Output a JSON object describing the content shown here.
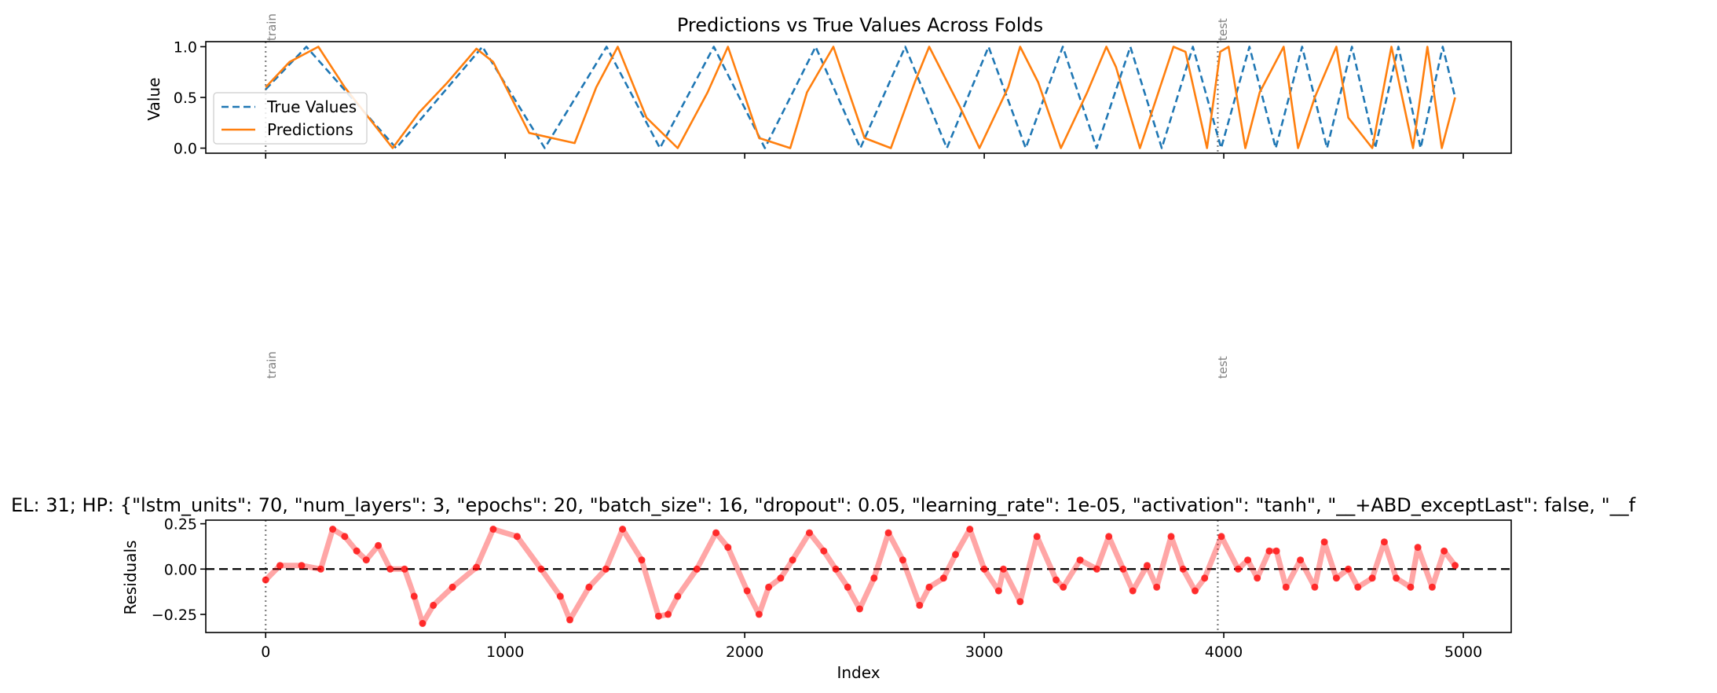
{
  "chart_data": [
    {
      "type": "line",
      "title": "Predictions vs True Values Across Folds",
      "xlabel": "",
      "ylabel": "Value",
      "xlim": [
        -250,
        5200
      ],
      "ylim": [
        -0.05,
        1.05
      ],
      "yticks": [
        0.0,
        0.5,
        1.0
      ],
      "ytick_labels": [
        "0.0",
        "0.5",
        "1.0"
      ],
      "xticks": [
        0,
        1000,
        2000,
        3000,
        4000,
        5000
      ],
      "grid": false,
      "legend_placement": "center-left",
      "fold_markers": [
        {
          "x": 0,
          "label": "train"
        },
        {
          "x": 3975,
          "label": "test"
        }
      ],
      "series": [
        {
          "name": "True Values",
          "style": "dashed",
          "color": "#1f77b4",
          "x": [
            0,
            170,
            545,
            905,
            1165,
            1423,
            1646,
            1871,
            2084,
            2296,
            2483,
            2670,
            2844,
            3018,
            3173,
            3328,
            3469,
            3610,
            3741,
            3871,
            3989,
            4107,
            4217,
            4327,
            4431,
            4535,
            4632,
            4729,
            4822,
            4914,
            4966
          ],
          "y": [
            0.58,
            1.0,
            0.0,
            1.0,
            0.0,
            1.0,
            0.0,
            1.0,
            0.0,
            1.0,
            0.0,
            1.0,
            0.0,
            1.0,
            0.0,
            1.0,
            0.0,
            1.0,
            0.0,
            1.0,
            0.0,
            1.0,
            0.0,
            1.0,
            0.0,
            1.0,
            0.0,
            1.0,
            0.0,
            1.0,
            0.5
          ]
        },
        {
          "name": "Predictions",
          "style": "solid",
          "color": "#ff7f0e",
          "x": [
            0,
            100,
            220,
            330,
            530,
            640,
            760,
            880,
            950,
            1100,
            1290,
            1380,
            1470,
            1590,
            1720,
            1845,
            1930,
            2060,
            2190,
            2260,
            2370,
            2500,
            2610,
            2710,
            2770,
            2900,
            2980,
            3100,
            3150,
            3225,
            3320,
            3430,
            3510,
            3550,
            3650,
            3790,
            3840,
            3930,
            3985,
            4020,
            4090,
            4150,
            4250,
            4310,
            4380,
            4470,
            4520,
            4620,
            4700,
            4790,
            4850,
            4910,
            4966
          ],
          "y": [
            0.6,
            0.85,
            1.0,
            0.6,
            0.0,
            0.35,
            0.65,
            0.98,
            0.85,
            0.15,
            0.05,
            0.6,
            1.0,
            0.3,
            0.0,
            0.55,
            1.0,
            0.1,
            0.0,
            0.55,
            1.0,
            0.1,
            0.0,
            0.65,
            1.0,
            0.4,
            0.0,
            0.6,
            1.0,
            0.65,
            0.0,
            0.55,
            1.0,
            0.8,
            0.0,
            1.0,
            0.95,
            0.0,
            0.95,
            1.0,
            0.0,
            0.55,
            1.0,
            0.0,
            0.5,
            1.0,
            0.3,
            0.0,
            1.0,
            0.0,
            1.0,
            0.0,
            0.5
          ]
        }
      ]
    },
    {
      "type": "scatter",
      "title": "EL: 31; HP: {\"lstm_units\": 70, \"num_layers\": 3, \"epochs\": 20, \"batch_size\": 16, \"dropout\": 0.05, \"learning_rate\": 1e-05, \"activation\": \"tanh\", \"__+ABD_exceptLast\": false, \"__f",
      "xlabel": "Index",
      "ylabel": "Residuals",
      "xlim": [
        -250,
        5200
      ],
      "ylim": [
        -0.35,
        0.27
      ],
      "yticks": [
        -0.25,
        0.0,
        0.25
      ],
      "ytick_labels": [
        "−0.25",
        "0.00",
        "0.25"
      ],
      "xticks": [
        0,
        1000,
        2000,
        3000,
        4000,
        5000
      ],
      "xtick_labels": [
        "0",
        "1000",
        "2000",
        "3000",
        "4000",
        "5000"
      ],
      "grid": false,
      "zero_line": 0,
      "fold_markers": [
        {
          "x": 0,
          "label": "train"
        },
        {
          "x": 3975,
          "label": "test"
        }
      ],
      "series": [
        {
          "color": "#ff0000",
          "x": [
            0,
            60,
            150,
            230,
            280,
            330,
            380,
            420,
            470,
            520,
            580,
            620,
            655,
            700,
            780,
            880,
            950,
            1050,
            1150,
            1230,
            1270,
            1350,
            1420,
            1490,
            1570,
            1640,
            1680,
            1720,
            1800,
            1880,
            1930,
            2010,
            2060,
            2100,
            2150,
            2200,
            2270,
            2330,
            2380,
            2430,
            2480,
            2540,
            2600,
            2660,
            2730,
            2770,
            2830,
            2880,
            2940,
            3000,
            3060,
            3080,
            3150,
            3220,
            3300,
            3330,
            3400,
            3470,
            3520,
            3580,
            3620,
            3680,
            3720,
            3780,
            3830,
            3880,
            3920,
            3990,
            4060,
            4100,
            4140,
            4190,
            4220,
            4260,
            4320,
            4380,
            4420,
            4470,
            4520,
            4560,
            4620,
            4670,
            4720,
            4780,
            4810,
            4870,
            4920,
            4966
          ],
          "y": [
            -0.06,
            0.02,
            0.02,
            0.0,
            0.22,
            0.18,
            0.1,
            0.05,
            0.13,
            0.0,
            0.0,
            -0.15,
            -0.3,
            -0.2,
            -0.1,
            0.01,
            0.22,
            0.18,
            0.0,
            -0.15,
            -0.28,
            -0.1,
            0.0,
            0.22,
            0.05,
            -0.26,
            -0.25,
            -0.15,
            0.0,
            0.2,
            0.12,
            -0.12,
            -0.25,
            -0.1,
            -0.05,
            0.05,
            0.2,
            0.1,
            0.0,
            -0.1,
            -0.22,
            -0.05,
            0.2,
            0.05,
            -0.2,
            -0.1,
            -0.05,
            0.08,
            0.22,
            0.0,
            -0.12,
            0.0,
            -0.18,
            0.18,
            -0.06,
            -0.1,
            0.05,
            0.0,
            0.18,
            0.0,
            -0.12,
            0.02,
            -0.1,
            0.18,
            0.0,
            -0.12,
            -0.05,
            0.18,
            0.0,
            0.05,
            -0.05,
            0.1,
            0.1,
            -0.1,
            0.05,
            -0.1,
            0.15,
            -0.05,
            0.0,
            -0.1,
            -0.05,
            0.15,
            -0.05,
            -0.1,
            0.12,
            -0.1,
            0.1,
            0.02
          ]
        }
      ]
    }
  ],
  "empty_panel": {
    "fold_markers": [
      {
        "label": "train"
      },
      {
        "label": "test"
      }
    ]
  }
}
